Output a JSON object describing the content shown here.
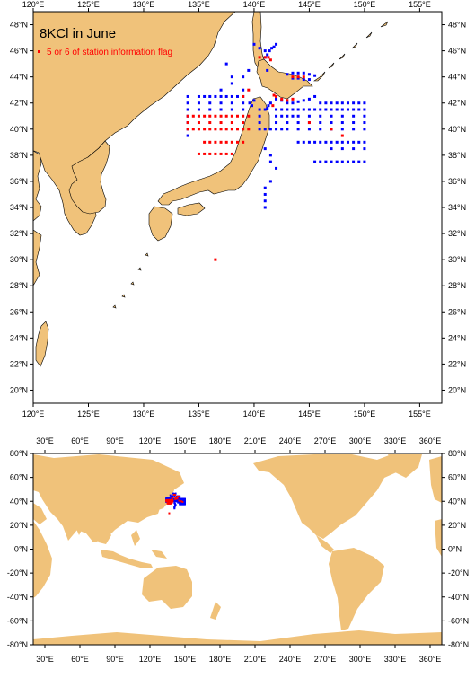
{
  "top_map": {
    "title": "8KCl in June",
    "legend_label": "5 or 6 of station information flag",
    "lon_labels": [
      "120°E",
      "125°E",
      "130°E",
      "135°E",
      "140°E",
      "145°E",
      "150°E",
      "155°E"
    ],
    "lat_labels_left": [
      "20°N",
      "22°N",
      "24°N",
      "26°N",
      "28°N",
      "30°N",
      "32°N",
      "34°N",
      "36°N",
      "38°N",
      "40°N",
      "42°N",
      "44°N",
      "46°N",
      "48°N"
    ],
    "lat_labels_right": [
      "20°N",
      "22°N",
      "24°N",
      "26°N",
      "28°N",
      "30°N",
      "32°N",
      "34°N",
      "36°N",
      "38°N",
      "40°N",
      "42°N",
      "44°N",
      "46°N",
      "48°N"
    ],
    "lon_range": [
      120,
      157
    ],
    "lat_range": [
      19,
      49
    ]
  },
  "bottom_map": {
    "lon_labels": [
      "30°E",
      "60°E",
      "90°E",
      "120°E",
      "150°E",
      "180°E",
      "210°E",
      "240°E",
      "270°E",
      "300°E",
      "330°E",
      "360°E"
    ],
    "lat_labels_left": [
      "80°N",
      "60°N",
      "40°N",
      "20°N",
      "0°N",
      "-20°N",
      "-40°N",
      "-60°N",
      "-80°N"
    ],
    "lat_labels_right": [
      "80°N",
      "60°N",
      "40°N",
      "20°N",
      "0°N",
      "-20°N",
      "-40°N",
      "-60°N",
      "-80°N"
    ],
    "lon_range": [
      20,
      370
    ],
    "lat_range": [
      -80,
      80
    ]
  },
  "colors": {
    "land": "#f0c27a",
    "ocean": "#ffffff",
    "normal_station": "#0000ff",
    "flagged_station": "#ff0000",
    "frame": "#000000"
  },
  "chart_data": {
    "type": "scatter",
    "series": [
      {
        "name": "",
        "color": "#0000ff",
        "points": [
          [
            134,
            42.5
          ],
          [
            134,
            42
          ],
          [
            134,
            41.5
          ],
          [
            134,
            41
          ],
          [
            134,
            40.5
          ],
          [
            134,
            40
          ],
          [
            134,
            39.5
          ],
          [
            135,
            42.5
          ],
          [
            135.5,
            42.5
          ],
          [
            136,
            42.5
          ],
          [
            136.5,
            42.5
          ],
          [
            137,
            42.5
          ],
          [
            137.5,
            42.5
          ],
          [
            138,
            42.5
          ],
          [
            138.5,
            42.5
          ],
          [
            139,
            42.5
          ],
          [
            135,
            42
          ],
          [
            136,
            42
          ],
          [
            137,
            42
          ],
          [
            138,
            42
          ],
          [
            139,
            42
          ],
          [
            135,
            41.5
          ],
          [
            136,
            41.5
          ],
          [
            137,
            41.5
          ],
          [
            138,
            41.5
          ],
          [
            139,
            41.5
          ],
          [
            137,
            43
          ],
          [
            138,
            43.5
          ],
          [
            139,
            44
          ],
          [
            139.5,
            44.5
          ],
          [
            139,
            43
          ],
          [
            138,
            44
          ],
          [
            137.5,
            45
          ],
          [
            140.5,
            41.5
          ],
          [
            140.5,
            41
          ],
          [
            140.5,
            40.5
          ],
          [
            140.5,
            40
          ],
          [
            141,
            40
          ],
          [
            141.5,
            40
          ],
          [
            142,
            40
          ],
          [
            142.5,
            40
          ],
          [
            141,
            45.5
          ],
          [
            141.2,
            45.7
          ],
          [
            141.4,
            46
          ],
          [
            141.6,
            46.2
          ],
          [
            141.8,
            46.3
          ],
          [
            142,
            46.5
          ],
          [
            141,
            46
          ],
          [
            140.5,
            46.2
          ],
          [
            140,
            46.5
          ],
          [
            141.2,
            44.5
          ],
          [
            143,
            44.2
          ],
          [
            143.5,
            44.3
          ],
          [
            144,
            44.3
          ],
          [
            144.5,
            44.3
          ],
          [
            145,
            44.2
          ],
          [
            145.5,
            44.1
          ],
          [
            143.5,
            43.9
          ],
          [
            144,
            43.9
          ],
          [
            144.5,
            43.8
          ],
          [
            145,
            43.8
          ],
          [
            142,
            42.3
          ],
          [
            142.5,
            42.2
          ],
          [
            143,
            42
          ],
          [
            143.5,
            42
          ],
          [
            144,
            42.1
          ],
          [
            144.5,
            42.2
          ],
          [
            145,
            42.3
          ],
          [
            145.5,
            42.5
          ],
          [
            141.5,
            42
          ],
          [
            141.3,
            41.8
          ],
          [
            141.2,
            41.6
          ],
          [
            141,
            41.5
          ],
          [
            142,
            41.5
          ],
          [
            142.5,
            41.5
          ],
          [
            143,
            41.5
          ],
          [
            143.5,
            41.5
          ],
          [
            144,
            41.5
          ],
          [
            144.5,
            41.5
          ],
          [
            145,
            41.5
          ],
          [
            145.5,
            41.5
          ],
          [
            146,
            41.5
          ],
          [
            146.5,
            41.5
          ],
          [
            147,
            41.5
          ],
          [
            147.5,
            41.5
          ],
          [
            148,
            41.5
          ],
          [
            148.5,
            41.5
          ],
          [
            149,
            41.5
          ],
          [
            149.5,
            41.5
          ],
          [
            150,
            41.5
          ],
          [
            142,
            41
          ],
          [
            142.5,
            41
          ],
          [
            143,
            41
          ],
          [
            143.5,
            41
          ],
          [
            144,
            41
          ],
          [
            145,
            41
          ],
          [
            146,
            41
          ],
          [
            147,
            41
          ],
          [
            148,
            41
          ],
          [
            149,
            41
          ],
          [
            150,
            41
          ],
          [
            142,
            40.5
          ],
          [
            143,
            40.5
          ],
          [
            144,
            40.5
          ],
          [
            145,
            40.5
          ],
          [
            146,
            40.5
          ],
          [
            147,
            40.5
          ],
          [
            148,
            40.5
          ],
          [
            149,
            40.5
          ],
          [
            150,
            40.5
          ],
          [
            146,
            42
          ],
          [
            146.5,
            42
          ],
          [
            147,
            42
          ],
          [
            147.5,
            42
          ],
          [
            148,
            42
          ],
          [
            148.5,
            42
          ],
          [
            149,
            42
          ],
          [
            149.5,
            42
          ],
          [
            150,
            42
          ],
          [
            143,
            40
          ],
          [
            144,
            40
          ],
          [
            145,
            40
          ],
          [
            146,
            40
          ],
          [
            147,
            40
          ],
          [
            148,
            40
          ],
          [
            149,
            40
          ],
          [
            150,
            40
          ],
          [
            144,
            39
          ],
          [
            144.5,
            39
          ],
          [
            145,
            39
          ],
          [
            145.5,
            39
          ],
          [
            146,
            39
          ],
          [
            146.5,
            39
          ],
          [
            147,
            39
          ],
          [
            147.5,
            39
          ],
          [
            148,
            39
          ],
          [
            148.5,
            39
          ],
          [
            149,
            39
          ],
          [
            149.5,
            39
          ],
          [
            150,
            39
          ],
          [
            147,
            38.5
          ],
          [
            148,
            38.5
          ],
          [
            149,
            38.5
          ],
          [
            150,
            38.5
          ],
          [
            145.5,
            37.5
          ],
          [
            146,
            37.5
          ],
          [
            146.5,
            37.5
          ],
          [
            147,
            37.5
          ],
          [
            147.5,
            37.5
          ],
          [
            148,
            37.5
          ],
          [
            148.5,
            37.5
          ],
          [
            149,
            37.5
          ],
          [
            149.5,
            37.5
          ],
          [
            150,
            37.5
          ],
          [
            140,
            42.2
          ],
          [
            139.6,
            42
          ],
          [
            139.8,
            41.8
          ],
          [
            141,
            38.5
          ],
          [
            141.5,
            38
          ],
          [
            141.5,
            37.5
          ],
          [
            142,
            37
          ],
          [
            141.5,
            36
          ],
          [
            141,
            35.5
          ],
          [
            141,
            35
          ],
          [
            141,
            34.5
          ],
          [
            141,
            34
          ]
        ]
      },
      {
        "name": "5 or 6 of station information flag",
        "color": "#ff0000",
        "points": [
          [
            134,
            41
          ],
          [
            134.5,
            41
          ],
          [
            135,
            41
          ],
          [
            135.5,
            41
          ],
          [
            136,
            41
          ],
          [
            136.5,
            41
          ],
          [
            137,
            41
          ],
          [
            137.5,
            41
          ],
          [
            138,
            41
          ],
          [
            138.5,
            41
          ],
          [
            139,
            41
          ],
          [
            139.5,
            41
          ],
          [
            134,
            40.5
          ],
          [
            135,
            40.5
          ],
          [
            136,
            40.5
          ],
          [
            137,
            40.5
          ],
          [
            138,
            40.5
          ],
          [
            139,
            40.5
          ],
          [
            134,
            40
          ],
          [
            134.5,
            40
          ],
          [
            135,
            40
          ],
          [
            135.5,
            40
          ],
          [
            136,
            40
          ],
          [
            136.5,
            40
          ],
          [
            137,
            40
          ],
          [
            137.5,
            40
          ],
          [
            138,
            40
          ],
          [
            138.5,
            40
          ],
          [
            139,
            40
          ],
          [
            139.5,
            40
          ],
          [
            135.5,
            39
          ],
          [
            136,
            39
          ],
          [
            136.5,
            39
          ],
          [
            137,
            39
          ],
          [
            137.5,
            39
          ],
          [
            138,
            39
          ],
          [
            138.5,
            39
          ],
          [
            139,
            39
          ],
          [
            135,
            38.1
          ],
          [
            135.5,
            38.1
          ],
          [
            136,
            38.1
          ],
          [
            136.5,
            38.1
          ],
          [
            137,
            38.1
          ],
          [
            137.5,
            38.1
          ],
          [
            138,
            38.1
          ],
          [
            140.5,
            45.5
          ],
          [
            141,
            45.5
          ],
          [
            141.3,
            45.5
          ],
          [
            141.5,
            45.3
          ],
          [
            143.5,
            44
          ],
          [
            144,
            44
          ],
          [
            144.5,
            44
          ],
          [
            142,
            42.5
          ],
          [
            142.5,
            42.3
          ],
          [
            143,
            42.2
          ],
          [
            143.5,
            42.3
          ],
          [
            141.7,
            41.8
          ],
          [
            141.8,
            42.6
          ],
          [
            139.5,
            43
          ],
          [
            139,
            42.5
          ],
          [
            145,
            40.5
          ],
          [
            147,
            40
          ],
          [
            148,
            39.5
          ],
          [
            136.5,
            30
          ]
        ]
      }
    ]
  }
}
